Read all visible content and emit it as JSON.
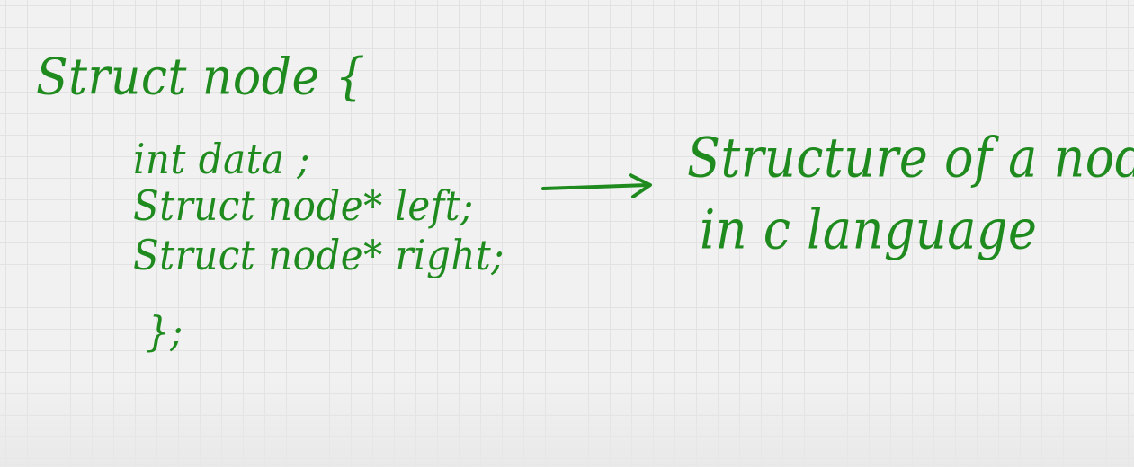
{
  "board": {
    "ink_color": "#1f8b1f",
    "background_color": "#f1f1f1",
    "grid_color": "#e2e2e2"
  },
  "code": {
    "line1": "Struct node {",
    "line2": "int data ;",
    "line3": "Struct node* left;",
    "line4": "Struct node* right;",
    "line5": "};"
  },
  "note": {
    "line1": "Structure of a node",
    "line2": "in c language"
  },
  "icons": {
    "arrow": "arrow-right-icon"
  }
}
